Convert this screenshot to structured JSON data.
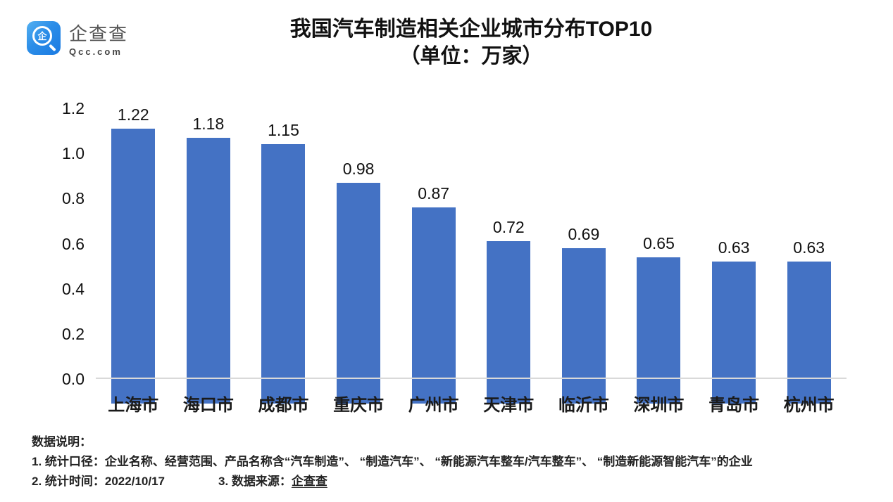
{
  "logo": {
    "company": "企查查",
    "domain": "Qcc.com",
    "icon_char": "企",
    "icon_gradient_start": "#55b1f1",
    "icon_gradient_end": "#1a7ae2"
  },
  "chart_data": {
    "type": "bar",
    "title": "我国汽车制造相关企业城市分布TOP10",
    "subtitle": "（单位：万家）",
    "categories": [
      "上海市",
      "海口市",
      "成都市",
      "重庆市",
      "广州市",
      "天津市",
      "临沂市",
      "深圳市",
      "青岛市",
      "杭州市"
    ],
    "values": [
      1.22,
      1.18,
      1.15,
      0.98,
      0.87,
      0.72,
      0.69,
      0.65,
      0.63,
      0.63
    ],
    "xlabel": "",
    "ylabel": "",
    "ylim": [
      0,
      1.2
    ],
    "yticks": [
      "0.0",
      "0.2",
      "0.4",
      "0.6",
      "0.8",
      "1.0",
      "1.2"
    ],
    "grid": false,
    "legend": null,
    "bar_color": "#4472C4",
    "axis_color": "#d9d9d9"
  },
  "notes": {
    "heading": "数据说明：",
    "line1": "1. 统计口径：企业名称、经营范围、产品名称含“汽车制造”、 “制造汽车”、 “新能源汽车整车/汽车整车”、 “制造新能源智能汽车”的企业",
    "line2_left": "2. 统计时间：2022/10/17",
    "line2_right_label": "3. 数据来源：",
    "line2_right_link": "企查查"
  }
}
